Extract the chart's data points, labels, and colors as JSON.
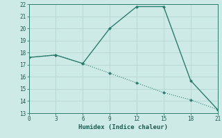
{
  "xlabel": "Humidex (Indice chaleur)",
  "xlim": [
    0,
    21
  ],
  "ylim": [
    13,
    22
  ],
  "xticks": [
    0,
    3,
    6,
    9,
    12,
    15,
    18,
    21
  ],
  "yticks": [
    13,
    14,
    15,
    16,
    17,
    18,
    19,
    20,
    21,
    22
  ],
  "line1_x": [
    0,
    3,
    6,
    9,
    12,
    15,
    18,
    21
  ],
  "line1_y": [
    17.6,
    17.8,
    17.1,
    20.0,
    21.8,
    21.8,
    15.7,
    13.3
  ],
  "line2_x": [
    0,
    3,
    6,
    9,
    12,
    15,
    18,
    21
  ],
  "line2_y": [
    17.6,
    17.8,
    17.1,
    16.3,
    15.5,
    14.7,
    14.1,
    13.3
  ],
  "line_color": "#2a7d6e",
  "bg_color": "#cdeae6",
  "grid_color": "#b8d8d4",
  "font_color": "#1a5c52"
}
